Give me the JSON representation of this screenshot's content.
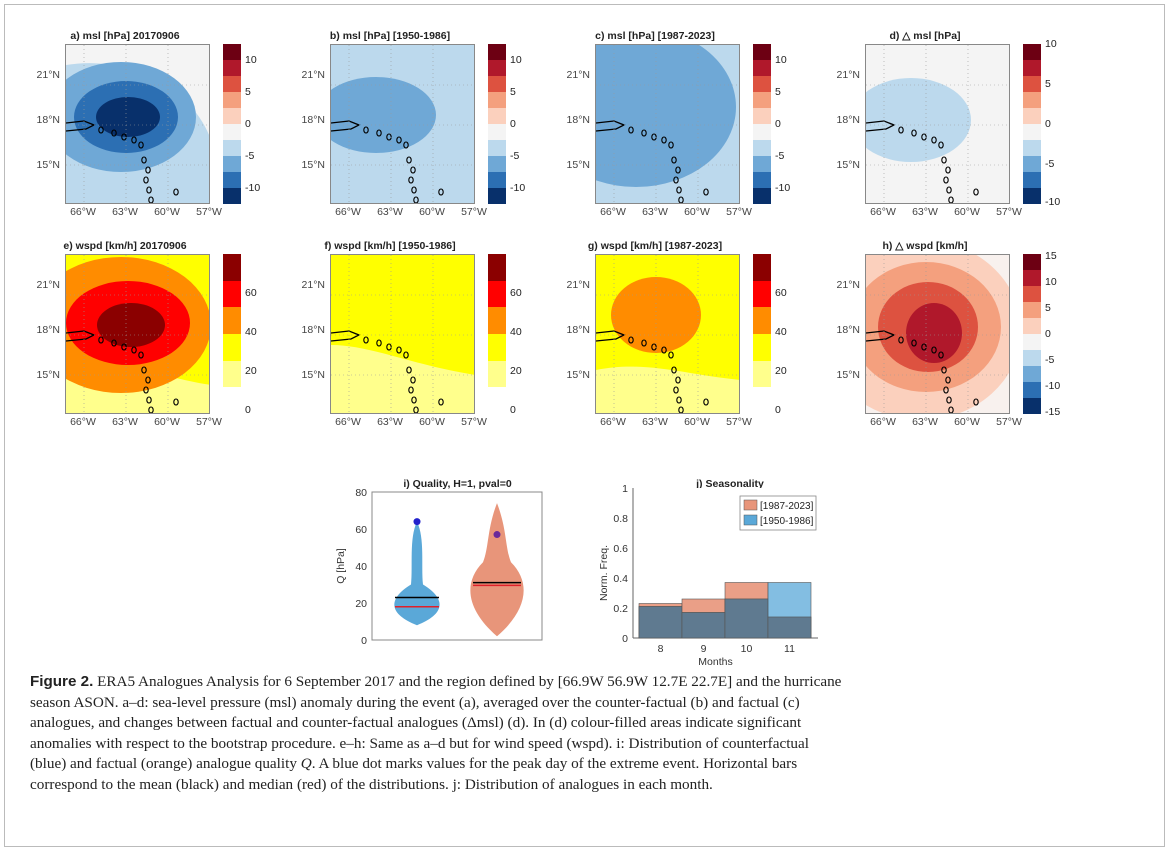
{
  "panels": {
    "a": {
      "title": "a) msl [hPa] 20170906",
      "ticks": [
        "10",
        "5",
        "0",
        "-5",
        "-10"
      ]
    },
    "b": {
      "title": "b) msl [hPa] [1950-1986]",
      "ticks": [
        "10",
        "5",
        "0",
        "-5",
        "-10"
      ]
    },
    "c": {
      "title": "c) msl [hPa] [1987-2023]",
      "ticks": [
        "10",
        "5",
        "0",
        "-5",
        "-10"
      ]
    },
    "d": {
      "title": "d) △ msl [hPa]",
      "ticks": [
        "10",
        "5",
        "0",
        "-5",
        "-10"
      ]
    },
    "e": {
      "title": "e) wspd [km/h] 20170906",
      "ticks": [
        "60",
        "40",
        "20",
        "0"
      ]
    },
    "f": {
      "title": "f) wspd [km/h] [1950-1986]",
      "ticks": [
        "60",
        "40",
        "20",
        "0"
      ]
    },
    "g": {
      "title": "g) wspd [km/h] [1987-2023]",
      "ticks": [
        "60",
        "40",
        "20",
        "0"
      ]
    },
    "h": {
      "title": "h) △ wspd [km/h]",
      "ticks": [
        "15",
        "10",
        "5",
        "0",
        "-5",
        "-10",
        "-15"
      ]
    }
  },
  "map_axes": {
    "lat_labels": [
      "21°N",
      "18°N",
      "15°N"
    ],
    "lon_labels": [
      "66°W",
      "63°W",
      "60°W",
      "57°W"
    ]
  },
  "colors": {
    "msl": [
      "#08306b",
      "#2c6fb3",
      "#6fa8d6",
      "#bcd9ed",
      "#f4f4f4",
      "#fbd0bd",
      "#f4a07e",
      "#dd5240",
      "#b0182b",
      "#6d0013"
    ],
    "wspd": [
      "#ffffff",
      "#ffff8c",
      "#ffff00",
      "#ff8c00",
      "#ff0000",
      "#8b0000"
    ],
    "counterfactual": "#5aa8d8",
    "factual": "#e8957a"
  },
  "chart_data": [
    {
      "type": "violin",
      "title": "i) Quality, H=1, pval=0",
      "ylabel": "Q [hPa]",
      "ylim": [
        0,
        80
      ],
      "yticks": [
        "0",
        "20",
        "40",
        "60",
        "80"
      ],
      "series": [
        {
          "name": "counterfactual",
          "mean": 23,
          "median": 18,
          "peak_day": 64
        },
        {
          "name": "factual",
          "mean": 31,
          "median": 29.5,
          "peak_day": 57
        }
      ]
    },
    {
      "type": "bar",
      "title": "j) Seasonality",
      "xlabel": "Months",
      "ylabel": "Norm. Freq.",
      "ylim": [
        0,
        1
      ],
      "yticks": [
        "0",
        "0.2",
        "0.4",
        "0.6",
        "0.8",
        "1"
      ],
      "categories": [
        "8",
        "9",
        "10",
        "11"
      ],
      "series": [
        {
          "name": "[1987-2023]",
          "values": [
            0.23,
            0.26,
            0.37,
            0.14
          ]
        },
        {
          "name": "[1950-1986]",
          "values": [
            0.21,
            0.17,
            0.26,
            0.37
          ]
        }
      ],
      "legend": "top-right"
    }
  ],
  "caption": {
    "label": "Figure 2.",
    "line1": " ERA5 Analogues Analysis for 6 September 2017 and the region defined by [66.9W 56.9W 12.7E 22.7E] and the hurricane",
    "line2": "season ASON. a–d: sea-level pressure (msl) anomaly during the event (a), averaged over the counter-factual (b) and factual (c)",
    "line3": "analogues, and changes between factual and counter-factual analogues (Δmsl) (d). In (d) colour-filled areas indicate significant",
    "line4": "anomalies with respect to the bootstrap procedure. e–h: Same as a–d but for wind speed (wspd). i: Distribution of counterfactual",
    "line5": "(blue) and factual (orange) analogue quality ",
    "q": "Q",
    "line5b": ". A blue dot marks values for the peak day of the extreme event. Horizontal bars",
    "line6": "correspond to the mean (black) and median (red) of the distributions. j: Distribution of analogues in each month."
  }
}
